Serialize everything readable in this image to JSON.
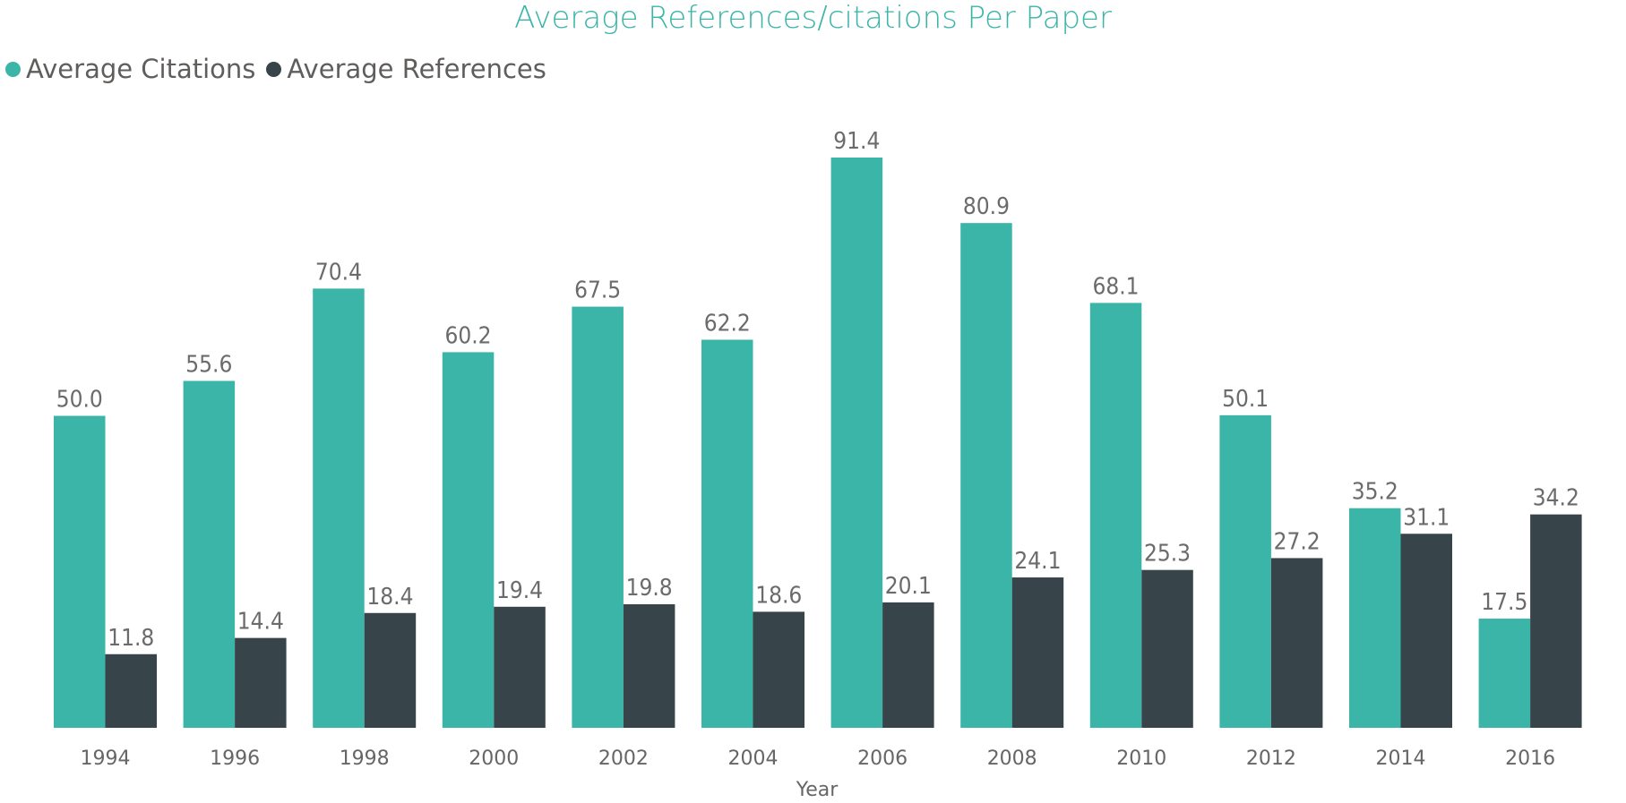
{
  "chart_data": {
    "type": "bar",
    "title": "Average References/citations Per Paper",
    "xlabel": "Year",
    "ylabel": "",
    "categories": [
      "1994",
      "1996",
      "1998",
      "2000",
      "2002",
      "2004",
      "2006",
      "2008",
      "2010",
      "2012",
      "2014",
      "2016"
    ],
    "series": [
      {
        "name": "Average Citations",
        "color": "#3ab5a8",
        "values": [
          50.0,
          55.6,
          70.4,
          60.2,
          67.5,
          62.2,
          91.4,
          80.9,
          68.1,
          50.1,
          35.2,
          17.5
        ]
      },
      {
        "name": "Average References",
        "color": "#37454a",
        "values": [
          11.8,
          14.4,
          18.4,
          19.4,
          19.8,
          18.6,
          20.1,
          24.1,
          25.3,
          27.2,
          31.1,
          34.2
        ]
      }
    ],
    "ylim": [
      0,
      91.4
    ],
    "grid": false,
    "legend": "top-left",
    "data_labels": true
  }
}
